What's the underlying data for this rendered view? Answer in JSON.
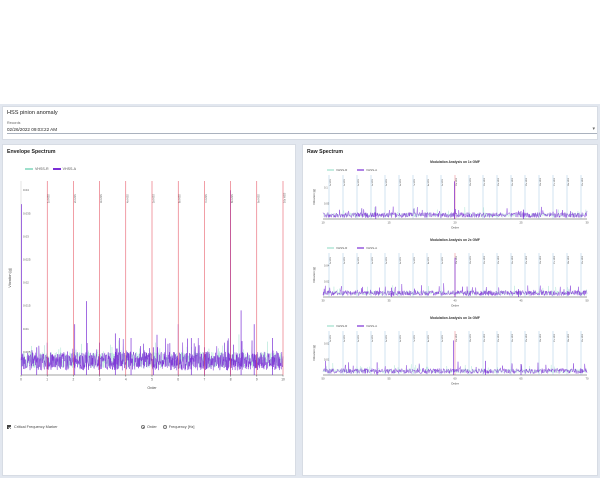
{
  "header": {
    "title": "HSS pinion anomaly",
    "record_label": "Records",
    "record_value": "02/26/2022 09:03:22 AM"
  },
  "colors": {
    "vhss_r": "#9ee0cc",
    "vhss_a": "#7b2fd6",
    "marker": "#e33c4f",
    "accent": "#1f77b4"
  },
  "envelope": {
    "title": "Envelope Spectrum",
    "legend": [
      "VHSS-R",
      "VHSS-A"
    ],
    "checkbox_label": "Critical Frequency Marker",
    "radio_options": [
      "Order",
      "Frequency [Hz]"
    ],
    "selected_radio": "Order",
    "chart_data": {
      "type": "line",
      "ylabel": "Vibration [g]",
      "xlabel": "Order",
      "xlim": [
        0,
        10
      ],
      "ylim": [
        0,
        0.042
      ],
      "xticks": [
        "0",
        "1",
        "2",
        "3",
        "4",
        "5",
        "6",
        "7",
        "8",
        "9",
        "10"
      ],
      "yticks": [
        "0.04",
        "0.035",
        "0.03",
        "0.025",
        "0.02",
        "0.015",
        "0.01",
        "0.005"
      ],
      "markers": [
        {
          "x": 1,
          "label": "1x HSS"
        },
        {
          "x": 2,
          "label": "2x HSS"
        },
        {
          "x": 3,
          "label": "3x HSS"
        },
        {
          "x": 4,
          "label": "4x HSS"
        },
        {
          "x": 5,
          "label": "5x HSS"
        },
        {
          "x": 6,
          "label": "6x HSS"
        },
        {
          "x": 7,
          "label": "7x HSS"
        },
        {
          "x": 8,
          "label": "8x HSS"
        },
        {
          "x": 9,
          "label": "9x HSS"
        },
        {
          "x": 10,
          "label": "10x HSS"
        }
      ],
      "peaks": [
        {
          "x": 0.02,
          "y": 0.037
        },
        {
          "x": 0.6,
          "y": 0.006
        },
        {
          "x": 1.0,
          "y": 0.007
        },
        {
          "x": 2.05,
          "y": 0.011
        },
        {
          "x": 2.5,
          "y": 0.016
        },
        {
          "x": 3.0,
          "y": 0.007
        },
        {
          "x": 3.6,
          "y": 0.009
        },
        {
          "x": 4.2,
          "y": 0.008
        },
        {
          "x": 5.05,
          "y": 0.006
        },
        {
          "x": 6.0,
          "y": 0.011
        },
        {
          "x": 6.5,
          "y": 0.008
        },
        {
          "x": 7.0,
          "y": 0.006
        },
        {
          "x": 8.0,
          "y": 0.04
        },
        {
          "x": 8.4,
          "y": 0.014
        },
        {
          "x": 8.9,
          "y": 0.011
        },
        {
          "x": 9.6,
          "y": 0.008
        }
      ]
    }
  },
  "raw": {
    "title": "Raw Spectrum",
    "legend": [
      "VHSS-R",
      "VHSS-A"
    ],
    "charts": [
      {
        "title": "Modulation Analysis on 1x GMF",
        "ylabel": "Vibration [g]",
        "xlabel": "Order",
        "xlim": [
          10,
          30
        ],
        "xticks": [
          "10",
          "15",
          "20",
          "25",
          "30"
        ],
        "yticks": [
          "0.1",
          "0.05"
        ],
        "markers": [
          "1x HSS",
          "2x HSS",
          "3x HSS",
          "4x HSS",
          "5x HSS",
          "6x HSS",
          "7x HSS",
          "8x HSS",
          "9x HSS",
          "10x HSS",
          "11x HSS",
          "12x HSS",
          "13x HSS",
          "14x HSS",
          "15x HSS",
          "16x HSS",
          "17x HSS",
          "18x HSS",
          "19x HSS"
        ],
        "peaks": [
          {
            "x": 19.95,
            "y": 0.12
          },
          {
            "x": 14.0,
            "y": 0.04
          },
          {
            "x": 25.2,
            "y": 0.03
          }
        ]
      },
      {
        "title": "Modulation Analysis on 2x GMF",
        "ylabel": "Vibration [g]",
        "xlabel": "Order",
        "xlim": [
          30,
          50
        ],
        "xticks": [
          "30",
          "35",
          "40",
          "45",
          "50"
        ],
        "yticks": [
          "0.04",
          "0.02"
        ],
        "markers": [
          "1x HSS",
          "2x HSS",
          "3x HSS",
          "4x HSS",
          "5x HSS",
          "6x HSS",
          "7x HSS",
          "8x HSS",
          "9x HSS",
          "10x HSS",
          "11x HSS",
          "12x HSS",
          "13x HSS",
          "14x HSS",
          "15x HSS",
          "16x HSS",
          "17x HSS",
          "18x HSS",
          "19x HSS"
        ],
        "peaks": [
          {
            "x": 40.0,
            "y": 0.05
          },
          {
            "x": 35.2,
            "y": 0.012
          },
          {
            "x": 44.8,
            "y": 0.01
          }
        ]
      },
      {
        "title": "Modulation Analysis on 3x GMF",
        "ylabel": "Vibration [g]",
        "xlabel": "Order",
        "xlim": [
          50,
          70
        ],
        "xticks": [
          "50",
          "55",
          "60",
          "65",
          "70"
        ],
        "yticks": [
          "0.02",
          "0.01"
        ],
        "markers": [
          "1x HSS",
          "2x HSS",
          "3x HSS",
          "4x HSS",
          "5x HSS",
          "6x HSS",
          "7x HSS",
          "8x HSS",
          "9x HSS",
          "10x HSS",
          "11x HSS",
          "12x HSS",
          "13x HSS",
          "14x HSS",
          "15x HSS",
          "16x HSS",
          "17x HSS",
          "18x HSS",
          "19x HSS"
        ],
        "peaks": [
          {
            "x": 59.9,
            "y": 0.022
          },
          {
            "x": 54.1,
            "y": 0.008
          },
          {
            "x": 62.3,
            "y": 0.009
          },
          {
            "x": 65.0,
            "y": 0.007
          }
        ]
      }
    ]
  }
}
